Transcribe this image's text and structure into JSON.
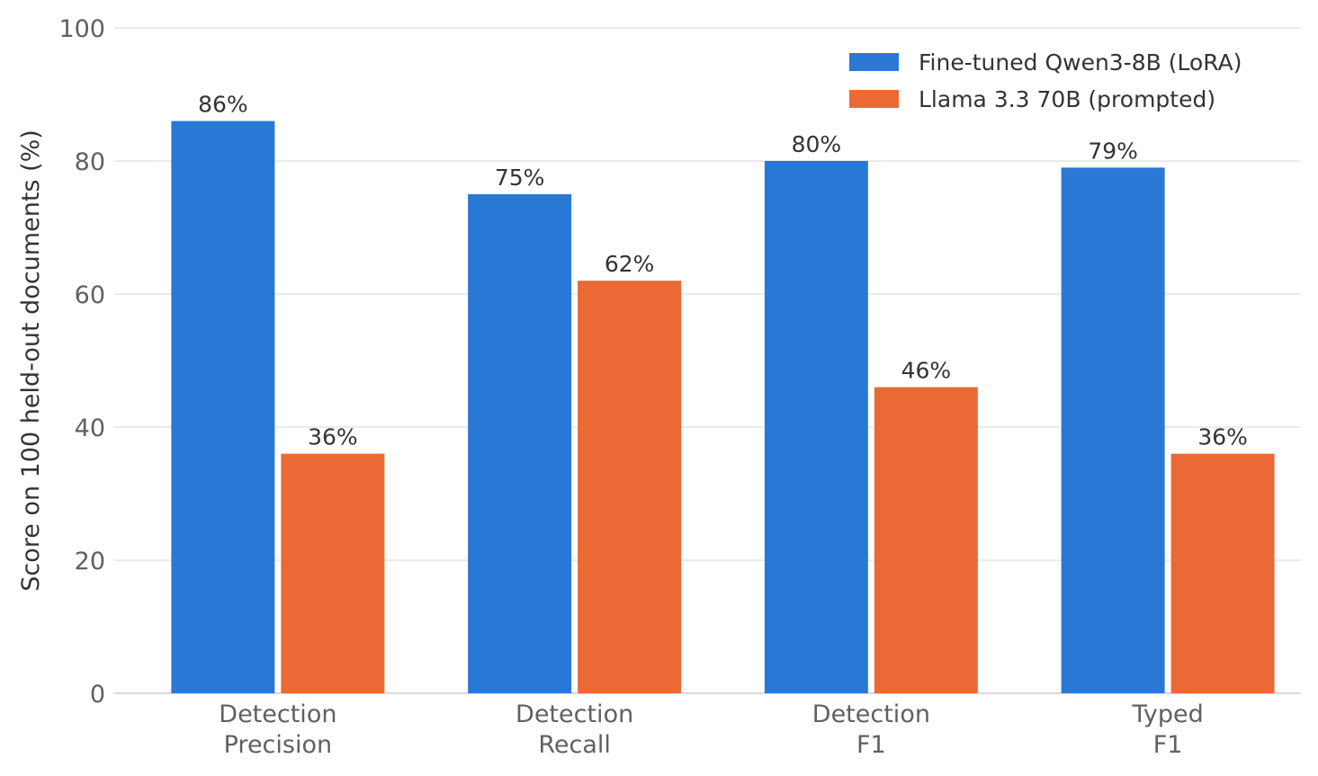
{
  "chart_data": {
    "type": "bar",
    "title": "",
    "xlabel": "",
    "ylabel": "Score on 100 held-out documents (%)",
    "ylim": [
      0,
      100
    ],
    "yticks": [
      0,
      20,
      40,
      60,
      80,
      100
    ],
    "grid": true,
    "legend_position": "top-right",
    "categories": [
      [
        "Detection",
        "Precision"
      ],
      [
        "Detection",
        "Recall"
      ],
      [
        "Detection",
        "F1"
      ],
      [
        "Typed",
        "F1"
      ]
    ],
    "series": [
      {
        "name": "Fine-tuned Qwen3-8B (LoRA)",
        "color": "#2a78d6",
        "values": [
          86,
          75,
          80,
          79
        ],
        "labels": [
          "86%",
          "75%",
          "80%",
          "79%"
        ]
      },
      {
        "name": "Llama 3.3 70B (prompted)",
        "color": "#ea6935",
        "values": [
          36,
          62,
          46,
          36
        ],
        "labels": [
          "36%",
          "62%",
          "46%",
          "36%"
        ]
      }
    ]
  }
}
